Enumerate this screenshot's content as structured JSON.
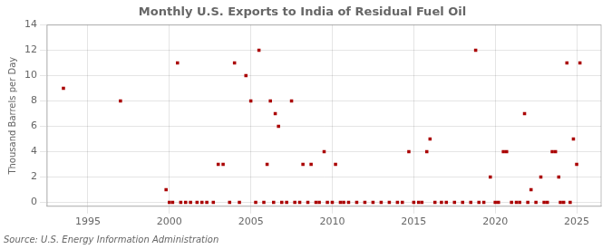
{
  "chart_data": {
    "type": "scatter",
    "title": "Monthly U.S. Exports to India of Residual Fuel Oil",
    "ylabel": "Thousand Barrels per Day",
    "annotation": "Source: U.S. Energy Information Administration",
    "color": "#aa0000",
    "marker": "square",
    "grid": true,
    "xlim": [
      1992.5,
      2026.5
    ],
    "ylim": [
      -0.3,
      14
    ],
    "xticks": [
      1995,
      2000,
      2005,
      2010,
      2015,
      2020,
      2025
    ],
    "yticks": [
      0,
      2,
      4,
      6,
      8,
      10,
      12,
      14
    ],
    "x": [
      1993.5,
      1997.0,
      1999.8,
      2000.0,
      2000.2,
      2000.5,
      2000.7,
      2001.0,
      2001.3,
      2001.7,
      2002.0,
      2002.3,
      2002.7,
      2003.0,
      2003.3,
      2003.7,
      2004.0,
      2004.3,
      2004.7,
      2005.0,
      2005.3,
      2005.5,
      2005.8,
      2006.0,
      2006.2,
      2006.4,
      2006.5,
      2006.7,
      2006.9,
      2007.2,
      2007.5,
      2007.7,
      2008.0,
      2008.2,
      2008.5,
      2008.7,
      2009.0,
      2009.2,
      2009.5,
      2009.7,
      2010.0,
      2010.2,
      2010.5,
      2010.7,
      2011.0,
      2011.5,
      2012.0,
      2012.5,
      2013.0,
      2013.5,
      2014.0,
      2014.3,
      2014.7,
      2015.0,
      2015.3,
      2015.5,
      2015.8,
      2016.0,
      2016.3,
      2016.7,
      2017.0,
      2017.5,
      2018.0,
      2018.5,
      2018.8,
      2019.0,
      2019.3,
      2019.7,
      2020.0,
      2020.2,
      2020.5,
      2020.7,
      2021.0,
      2021.3,
      2021.5,
      2021.8,
      2022.0,
      2022.2,
      2022.5,
      2022.8,
      2023.0,
      2023.2,
      2023.5,
      2023.7,
      2023.9,
      2024.0,
      2024.2,
      2024.4,
      2024.6,
      2024.8,
      2025.0,
      2025.2
    ],
    "values": [
      9,
      8,
      1,
      0,
      0,
      11,
      0,
      0,
      0,
      0,
      0,
      0,
      0,
      3,
      3,
      0,
      11,
      0,
      10,
      8,
      0,
      12,
      0,
      3,
      8,
      0,
      7,
      6,
      0,
      0,
      8,
      0,
      0,
      3,
      0,
      3,
      0,
      0,
      4,
      0,
      0,
      3,
      0,
      0,
      0,
      0,
      0,
      0,
      0,
      0,
      0,
      0,
      4,
      0,
      0,
      0,
      4,
      5,
      0,
      0,
      0,
      0,
      0,
      0,
      12,
      0,
      0,
      2,
      0,
      0,
      4,
      4,
      0,
      0,
      0,
      7,
      0,
      1,
      0,
      2,
      0,
      0,
      4,
      4,
      2,
      0,
      0,
      11,
      0,
      5,
      3,
      11
    ]
  }
}
